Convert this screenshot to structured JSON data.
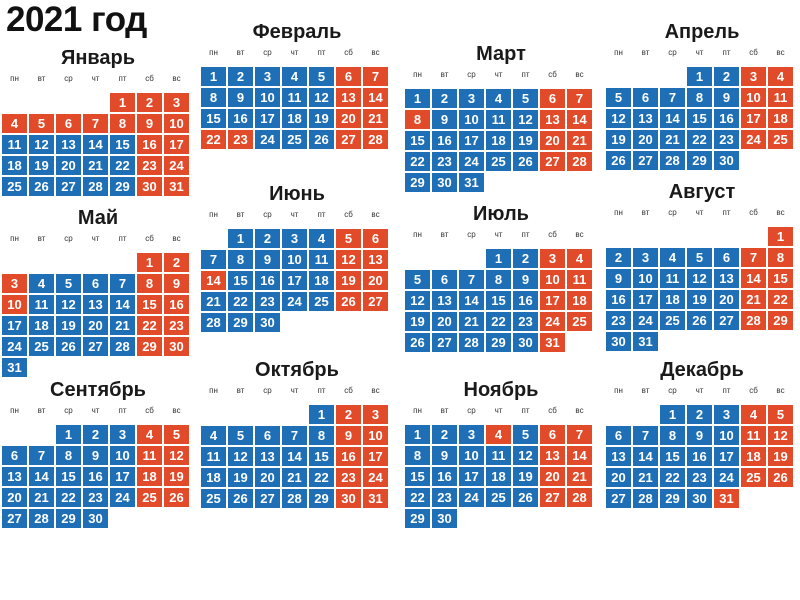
{
  "title": "2021 год",
  "weekdays": [
    "пн",
    "вт",
    "ср",
    "чт",
    "пт",
    "сб",
    "вс"
  ],
  "colors": {
    "workday": "#1e6fb5",
    "holiday": "#e14b2a"
  },
  "months": [
    {
      "name": "Январь",
      "start": 4,
      "days": 31,
      "holidays": [
        1,
        2,
        3,
        4,
        5,
        6,
        7,
        8,
        9,
        10,
        16,
        17,
        23,
        24,
        30,
        31
      ]
    },
    {
      "name": "Февраль",
      "start": 0,
      "days": 28,
      "holidays": [
        6,
        7,
        13,
        14,
        20,
        21,
        22,
        23,
        27,
        28
      ]
    },
    {
      "name": "Март",
      "start": 0,
      "days": 31,
      "holidays": [
        6,
        7,
        8,
        13,
        14,
        20,
        21,
        27,
        28
      ]
    },
    {
      "name": "Апрель",
      "start": 3,
      "days": 30,
      "holidays": [
        3,
        4,
        10,
        11,
        17,
        18,
        24,
        25
      ]
    },
    {
      "name": "Май",
      "start": 5,
      "days": 31,
      "holidays": [
        1,
        2,
        3,
        8,
        9,
        10,
        15,
        16,
        22,
        23,
        29,
        30
      ]
    },
    {
      "name": "Июнь",
      "start": 1,
      "days": 30,
      "holidays": [
        5,
        6,
        12,
        13,
        14,
        19,
        20,
        26,
        27
      ]
    },
    {
      "name": "Июль",
      "start": 3,
      "days": 31,
      "holidays": [
        3,
        4,
        10,
        11,
        17,
        18,
        24,
        25,
        31
      ]
    },
    {
      "name": "Август",
      "start": 6,
      "days": 31,
      "holidays": [
        1,
        7,
        8,
        14,
        15,
        21,
        22,
        28,
        29
      ]
    },
    {
      "name": "Сентябрь",
      "start": 2,
      "days": 30,
      "holidays": [
        4,
        5,
        11,
        12,
        18,
        19,
        25,
        26
      ]
    },
    {
      "name": "Октябрь",
      "start": 4,
      "days": 31,
      "holidays": [
        2,
        3,
        9,
        10,
        16,
        17,
        23,
        24,
        30,
        31
      ]
    },
    {
      "name": "Ноябрь",
      "start": 0,
      "days": 30,
      "holidays": [
        4,
        6,
        7,
        13,
        14,
        20,
        21,
        27,
        28
      ]
    },
    {
      "name": "Декабрь",
      "start": 2,
      "days": 31,
      "holidays": [
        4,
        5,
        11,
        12,
        18,
        19,
        25,
        26,
        31
      ]
    }
  ]
}
